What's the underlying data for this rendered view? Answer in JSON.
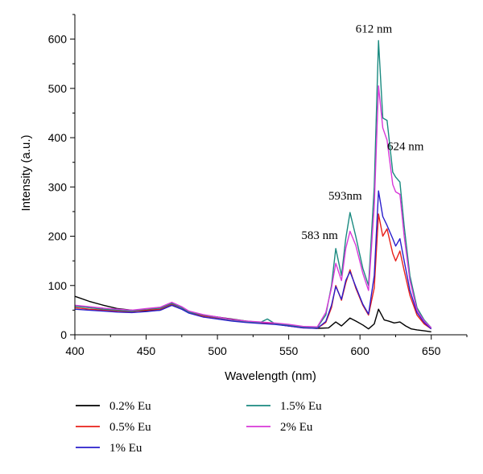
{
  "chart_data": {
    "type": "line",
    "xlabel": "Wavelength (nm)",
    "ylabel": "Intensity (a.u.)",
    "xlim": [
      400,
      675
    ],
    "ylim": [
      0,
      650
    ],
    "x_ticks": [
      400,
      450,
      500,
      550,
      600,
      650
    ],
    "y_ticks": [
      0,
      100,
      200,
      300,
      400,
      500,
      600
    ],
    "grid": false,
    "legend_position": "below",
    "annotations": [
      {
        "text": "583 nm",
        "x": 583,
        "y": 175
      },
      {
        "text": "593nm",
        "x": 593,
        "y": 248
      },
      {
        "text": "612 nm",
        "x": 612,
        "y": 597
      },
      {
        "text": "624 nm",
        "x": 624,
        "y": 355
      }
    ],
    "series": [
      {
        "name": "0.2% Eu",
        "color": "#000000",
        "points": [
          [
            400,
            78
          ],
          [
            410,
            68
          ],
          [
            420,
            60
          ],
          [
            430,
            53
          ],
          [
            440,
            50
          ],
          [
            450,
            48
          ],
          [
            460,
            50
          ],
          [
            468,
            60
          ],
          [
            475,
            52
          ],
          [
            480,
            46
          ],
          [
            490,
            40
          ],
          [
            500,
            36
          ],
          [
            510,
            32
          ],
          [
            520,
            28
          ],
          [
            530,
            25
          ],
          [
            540,
            22
          ],
          [
            550,
            18
          ],
          [
            560,
            15
          ],
          [
            570,
            13
          ],
          [
            578,
            14
          ],
          [
            583,
            26
          ],
          [
            587,
            18
          ],
          [
            593,
            34
          ],
          [
            597,
            28
          ],
          [
            602,
            20
          ],
          [
            606,
            12
          ],
          [
            610,
            22
          ],
          [
            613,
            52
          ],
          [
            617,
            30
          ],
          [
            620,
            28
          ],
          [
            624,
            24
          ],
          [
            628,
            26
          ],
          [
            632,
            18
          ],
          [
            636,
            12
          ],
          [
            640,
            10
          ],
          [
            645,
            8
          ],
          [
            650,
            6
          ]
        ]
      },
      {
        "name": "0.5% Eu",
        "color": "#e8201a",
        "points": [
          [
            400,
            55
          ],
          [
            410,
            52
          ],
          [
            420,
            50
          ],
          [
            430,
            48
          ],
          [
            440,
            47
          ],
          [
            450,
            50
          ],
          [
            460,
            52
          ],
          [
            468,
            62
          ],
          [
            475,
            55
          ],
          [
            480,
            45
          ],
          [
            490,
            38
          ],
          [
            500,
            34
          ],
          [
            510,
            30
          ],
          [
            520,
            26
          ],
          [
            530,
            24
          ],
          [
            540,
            22
          ],
          [
            550,
            18
          ],
          [
            560,
            14
          ],
          [
            570,
            13
          ],
          [
            576,
            25
          ],
          [
            580,
            55
          ],
          [
            583,
            100
          ],
          [
            587,
            70
          ],
          [
            590,
            105
          ],
          [
            593,
            132
          ],
          [
            597,
            95
          ],
          [
            602,
            60
          ],
          [
            606,
            40
          ],
          [
            610,
            95
          ],
          [
            613,
            245
          ],
          [
            616,
            200
          ],
          [
            619,
            215
          ],
          [
            623,
            165
          ],
          [
            625,
            150
          ],
          [
            628,
            170
          ],
          [
            631,
            130
          ],
          [
            635,
            80
          ],
          [
            640,
            40
          ],
          [
            645,
            22
          ],
          [
            650,
            12
          ]
        ]
      },
      {
        "name": "1% Eu",
        "color": "#2a1ecc",
        "points": [
          [
            400,
            52
          ],
          [
            410,
            50
          ],
          [
            420,
            48
          ],
          [
            430,
            46
          ],
          [
            440,
            45
          ],
          [
            450,
            47
          ],
          [
            460,
            50
          ],
          [
            468,
            60
          ],
          [
            475,
            52
          ],
          [
            480,
            44
          ],
          [
            490,
            36
          ],
          [
            500,
            32
          ],
          [
            510,
            28
          ],
          [
            520,
            25
          ],
          [
            530,
            23
          ],
          [
            540,
            21
          ],
          [
            550,
            18
          ],
          [
            560,
            14
          ],
          [
            570,
            13
          ],
          [
            576,
            27
          ],
          [
            580,
            60
          ],
          [
            583,
            98
          ],
          [
            587,
            72
          ],
          [
            590,
            110
          ],
          [
            593,
            128
          ],
          [
            597,
            98
          ],
          [
            602,
            62
          ],
          [
            606,
            42
          ],
          [
            610,
            120
          ],
          [
            613,
            292
          ],
          [
            616,
            240
          ],
          [
            619,
            222
          ],
          [
            623,
            195
          ],
          [
            625,
            180
          ],
          [
            628,
            195
          ],
          [
            631,
            150
          ],
          [
            635,
            90
          ],
          [
            640,
            45
          ],
          [
            645,
            25
          ],
          [
            650,
            12
          ]
        ]
      },
      {
        "name": "1.5% Eu",
        "color": "#1a8a80",
        "points": [
          [
            400,
            58
          ],
          [
            410,
            55
          ],
          [
            420,
            52
          ],
          [
            430,
            50
          ],
          [
            440,
            48
          ],
          [
            450,
            52
          ],
          [
            460,
            54
          ],
          [
            468,
            64
          ],
          [
            475,
            55
          ],
          [
            480,
            46
          ],
          [
            490,
            40
          ],
          [
            500,
            35
          ],
          [
            510,
            30
          ],
          [
            520,
            27
          ],
          [
            530,
            25
          ],
          [
            535,
            32
          ],
          [
            540,
            23
          ],
          [
            550,
            20
          ],
          [
            560,
            16
          ],
          [
            570,
            15
          ],
          [
            576,
            40
          ],
          [
            580,
            100
          ],
          [
            583,
            175
          ],
          [
            587,
            120
          ],
          [
            590,
            195
          ],
          [
            593,
            248
          ],
          [
            597,
            200
          ],
          [
            602,
            135
          ],
          [
            606,
            100
          ],
          [
            610,
            300
          ],
          [
            613,
            597
          ],
          [
            616,
            440
          ],
          [
            619,
            435
          ],
          [
            623,
            330
          ],
          [
            625,
            320
          ],
          [
            628,
            310
          ],
          [
            631,
            220
          ],
          [
            635,
            120
          ],
          [
            640,
            55
          ],
          [
            645,
            30
          ],
          [
            650,
            14
          ]
        ]
      },
      {
        "name": "2% Eu",
        "color": "#d838d8",
        "points": [
          [
            400,
            60
          ],
          [
            410,
            57
          ],
          [
            420,
            54
          ],
          [
            430,
            52
          ],
          [
            440,
            50
          ],
          [
            450,
            53
          ],
          [
            460,
            56
          ],
          [
            468,
            66
          ],
          [
            475,
            57
          ],
          [
            480,
            48
          ],
          [
            490,
            41
          ],
          [
            500,
            36
          ],
          [
            510,
            31
          ],
          [
            520,
            28
          ],
          [
            530,
            26
          ],
          [
            540,
            24
          ],
          [
            550,
            21
          ],
          [
            560,
            17
          ],
          [
            570,
            16
          ],
          [
            576,
            45
          ],
          [
            580,
            95
          ],
          [
            583,
            145
          ],
          [
            587,
            110
          ],
          [
            590,
            175
          ],
          [
            593,
            210
          ],
          [
            597,
            182
          ],
          [
            602,
            125
          ],
          [
            606,
            90
          ],
          [
            610,
            260
          ],
          [
            613,
            505
          ],
          [
            616,
            420
          ],
          [
            619,
            395
          ],
          [
            623,
            305
          ],
          [
            625,
            290
          ],
          [
            628,
            285
          ],
          [
            631,
            200
          ],
          [
            635,
            110
          ],
          [
            640,
            50
          ],
          [
            645,
            28
          ],
          [
            650,
            14
          ]
        ]
      }
    ]
  }
}
